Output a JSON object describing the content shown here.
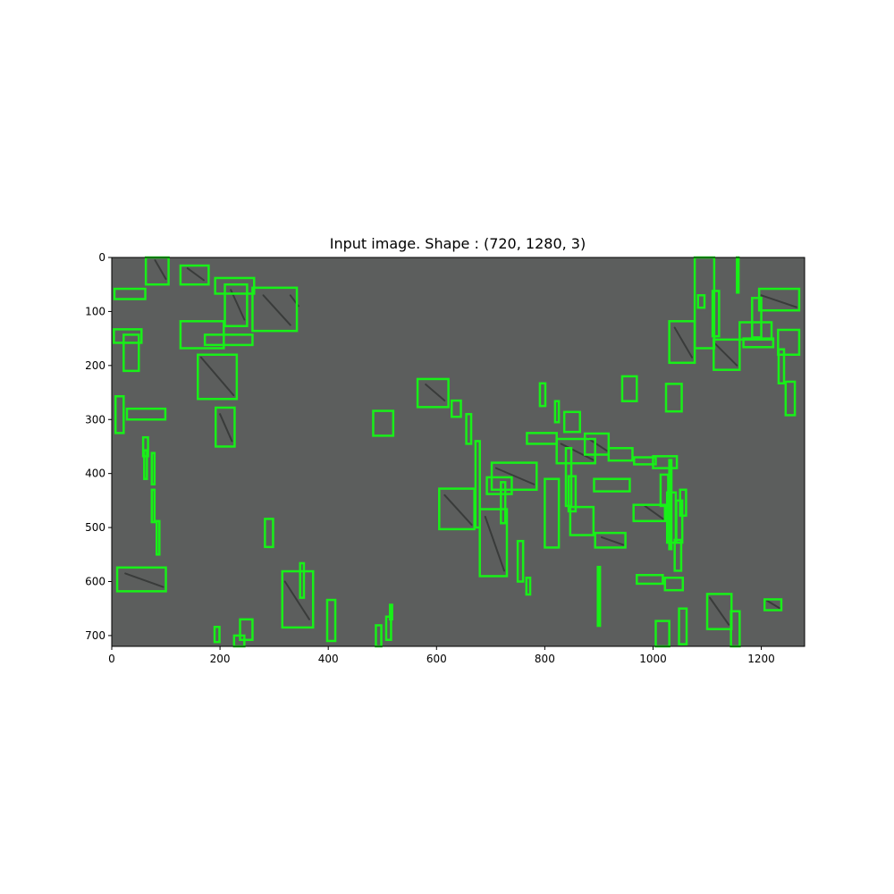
{
  "chart_data": {
    "type": "image",
    "title": "Input image. Shape : (720, 1280, 3)",
    "image": {
      "background": "#5c5e5d",
      "description_colors": {
        "cell": "#2e302f"
      }
    },
    "xlim": [
      0,
      1280
    ],
    "ylim": [
      720,
      0
    ],
    "xticks": [
      {
        "value": 0,
        "label": "0"
      },
      {
        "value": 200,
        "label": "200"
      },
      {
        "value": 400,
        "label": "400"
      },
      {
        "value": 600,
        "label": "600"
      },
      {
        "value": 800,
        "label": "800"
      },
      {
        "value": 1000,
        "label": "1000"
      },
      {
        "value": 1200,
        "label": "1200"
      }
    ],
    "yticks": [
      {
        "value": 0,
        "label": "0"
      },
      {
        "value": 100,
        "label": "100"
      },
      {
        "value": 200,
        "label": "200"
      },
      {
        "value": 300,
        "label": "300"
      },
      {
        "value": 400,
        "label": "400"
      },
      {
        "value": 500,
        "label": "500"
      },
      {
        "value": 600,
        "label": "600"
      },
      {
        "value": 700,
        "label": "700"
      }
    ],
    "box_color": "#18f018",
    "boxes": [
      [
        63,
        0,
        105,
        50
      ],
      [
        127,
        15,
        179,
        50
      ],
      [
        191,
        38,
        263,
        67
      ],
      [
        5,
        58,
        62,
        77
      ],
      [
        209,
        50,
        250,
        127
      ],
      [
        260,
        56,
        342,
        136
      ],
      [
        127,
        118,
        207,
        168
      ],
      [
        172,
        143,
        260,
        162
      ],
      [
        4,
        133,
        55,
        158
      ],
      [
        22,
        143,
        50,
        210
      ],
      [
        159,
        180,
        231,
        262
      ],
      [
        7,
        257,
        22,
        325
      ],
      [
        28,
        280,
        99,
        300
      ],
      [
        192,
        278,
        227,
        350
      ],
      [
        58,
        333,
        67,
        368
      ],
      [
        60,
        357,
        65,
        410
      ],
      [
        74,
        362,
        79,
        420
      ],
      [
        74,
        430,
        79,
        490
      ],
      [
        83,
        488,
        88,
        550
      ],
      [
        283,
        484,
        298,
        536
      ],
      [
        10,
        574,
        100,
        618
      ],
      [
        190,
        684,
        199,
        712
      ],
      [
        226,
        700,
        245,
        720
      ],
      [
        237,
        670,
        260,
        708
      ],
      [
        315,
        581,
        372,
        685
      ],
      [
        348,
        566,
        355,
        630
      ],
      [
        398,
        634,
        413,
        710
      ],
      [
        488,
        681,
        498,
        720
      ],
      [
        507,
        665,
        516,
        708
      ],
      [
        514,
        643,
        518,
        670
      ],
      [
        483,
        284,
        520,
        330
      ],
      [
        565,
        225,
        622,
        277
      ],
      [
        628,
        265,
        645,
        295
      ],
      [
        655,
        290,
        664,
        345
      ],
      [
        605,
        428,
        670,
        503
      ],
      [
        672,
        340,
        680,
        500
      ],
      [
        680,
        466,
        730,
        590
      ],
      [
        693,
        407,
        739,
        438
      ],
      [
        702,
        380,
        785,
        430
      ],
      [
        719,
        416,
        727,
        492
      ],
      [
        750,
        525,
        760,
        600
      ],
      [
        766,
        593,
        773,
        624
      ],
      [
        791,
        233,
        801,
        275
      ],
      [
        767,
        325,
        822,
        345
      ],
      [
        819,
        266,
        826,
        305
      ],
      [
        800,
        410,
        826,
        537
      ],
      [
        822,
        336,
        893,
        381
      ],
      [
        836,
        286,
        865,
        323
      ],
      [
        839,
        353,
        849,
        460
      ],
      [
        844,
        405,
        857,
        470
      ],
      [
        847,
        462,
        890,
        514
      ],
      [
        874,
        326,
        918,
        365
      ],
      [
        891,
        410,
        957,
        433
      ],
      [
        893,
        510,
        949,
        537
      ],
      [
        918,
        353,
        962,
        376
      ],
      [
        943,
        220,
        970,
        266
      ],
      [
        965,
        370,
        1005,
        383
      ],
      [
        964,
        458,
        1022,
        488
      ],
      [
        1014,
        402,
        1028,
        460
      ],
      [
        1000,
        368,
        1044,
        390
      ],
      [
        1024,
        234,
        1053,
        285
      ],
      [
        1030,
        375,
        1034,
        540
      ],
      [
        1026,
        435,
        1042,
        528
      ],
      [
        1043,
        450,
        1054,
        528
      ],
      [
        1040,
        523,
        1052,
        580
      ],
      [
        1050,
        430,
        1061,
        478
      ],
      [
        1030,
        118,
        1077,
        195
      ],
      [
        1077,
        0,
        1113,
        168
      ],
      [
        1083,
        70,
        1095,
        93
      ],
      [
        1110,
        62,
        1122,
        146
      ],
      [
        1155,
        0,
        1158,
        65
      ],
      [
        1112,
        152,
        1160,
        208
      ],
      [
        1160,
        120,
        1219,
        152
      ],
      [
        1167,
        150,
        1222,
        166
      ],
      [
        1183,
        75,
        1200,
        148
      ],
      [
        1196,
        58,
        1270,
        98
      ],
      [
        1231,
        134,
        1270,
        180
      ],
      [
        1232,
        170,
        1242,
        233
      ],
      [
        1245,
        230,
        1262,
        292
      ],
      [
        1206,
        633,
        1237,
        653
      ],
      [
        1100,
        623,
        1145,
        688
      ],
      [
        1144,
        655,
        1160,
        720
      ],
      [
        1048,
        650,
        1062,
        716
      ],
      [
        1005,
        673,
        1030,
        720
      ],
      [
        1022,
        593,
        1055,
        616
      ],
      [
        970,
        588,
        1018,
        604
      ],
      [
        898,
        573,
        902,
        682
      ]
    ],
    "cells": [
      [
        80,
        5,
        100,
        40
      ],
      [
        140,
        20,
        170,
        42
      ],
      [
        220,
        60,
        245,
        115
      ],
      [
        280,
        70,
        330,
        125
      ],
      [
        165,
        185,
        225,
        255
      ],
      [
        200,
        290,
        222,
        340
      ],
      [
        25,
        585,
        95,
        610
      ],
      [
        320,
        600,
        365,
        670
      ],
      [
        580,
        235,
        615,
        265
      ],
      [
        615,
        440,
        665,
        495
      ],
      [
        690,
        480,
        725,
        580
      ],
      [
        710,
        390,
        780,
        420
      ],
      [
        830,
        345,
        890,
        375
      ],
      [
        880,
        335,
        915,
        358
      ],
      [
        905,
        518,
        945,
        532
      ],
      [
        1040,
        130,
        1072,
        185
      ],
      [
        1115,
        160,
        1155,
        200
      ],
      [
        1200,
        70,
        1265,
        92
      ],
      [
        1105,
        630,
        1140,
        680
      ],
      [
        985,
        460,
        1020,
        485
      ],
      [
        330,
        70,
        345,
        90
      ],
      [
        1210,
        635,
        1235,
        650
      ]
    ]
  }
}
